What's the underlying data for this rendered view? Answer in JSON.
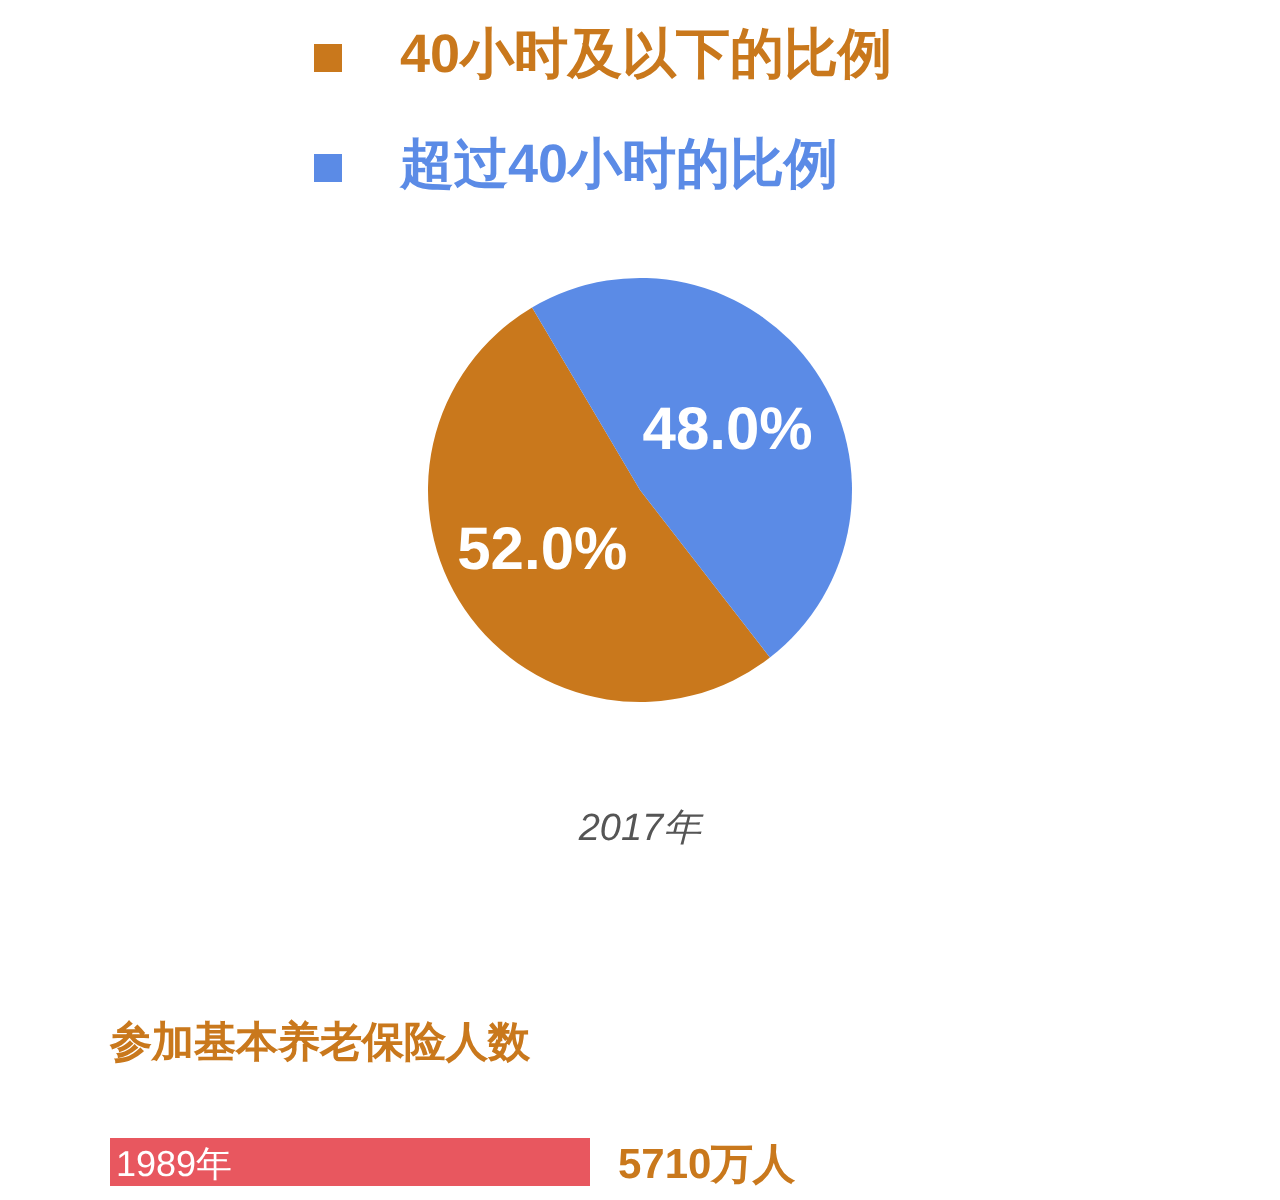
{
  "chart_data": [
    {
      "type": "pie",
      "xlabel": "2017年",
      "categories": [
        "40小时及以下的比例",
        "超过40小时的比例"
      ],
      "values": [
        52.0,
        48.0
      ],
      "colors": [
        "#c9781c",
        "#5b8be6"
      ],
      "value_labels": [
        "52.0%",
        "48.0%"
      ],
      "legend": "top"
    },
    {
      "type": "bar",
      "title": "参加基本养老保险人数",
      "orientation": "horizontal",
      "categories": [
        "1989年"
      ],
      "values": [
        5710
      ],
      "colors": [
        "#e8575f"
      ],
      "value_labels": [
        "5710万人"
      ]
    }
  ]
}
